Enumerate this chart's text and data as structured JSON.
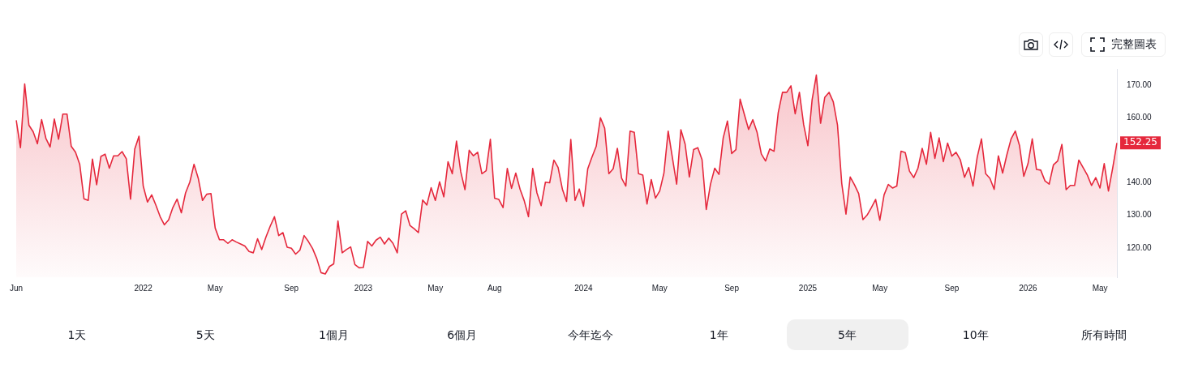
{
  "chart_data": {
    "type": "area",
    "categories": [
      "Jun",
      null,
      null,
      null,
      null,
      null,
      null,
      null,
      null,
      null,
      null,
      null,
      null,
      null,
      null,
      null,
      null,
      null,
      null,
      null,
      null,
      null,
      null,
      null,
      null,
      null,
      null,
      null,
      null,
      null,
      "2022",
      null,
      null,
      null,
      null,
      null,
      null,
      null,
      null,
      null,
      null,
      null,
      null,
      null,
      null,
      null,
      null,
      "May",
      null,
      null,
      null,
      null,
      null,
      null,
      null,
      null,
      null,
      null,
      null,
      null,
      null,
      null,
      null,
      null,
      null,
      "Sep",
      null,
      null,
      null,
      null,
      null,
      null,
      null,
      null,
      null,
      null,
      null,
      null,
      null,
      null,
      null,
      null,
      "2023",
      null,
      null,
      null,
      null,
      null,
      null,
      null,
      null,
      null,
      null,
      null,
      null,
      null,
      null,
      null,
      null,
      "May",
      null,
      null,
      null,
      null,
      null,
      null,
      null,
      null,
      null,
      null,
      null,
      null,
      null,
      "Aug",
      null,
      null,
      null,
      null,
      null,
      null,
      null,
      null,
      null,
      null,
      null,
      null,
      null,
      null,
      null,
      null,
      null,
      null,
      null,
      null,
      "2024",
      null,
      null,
      null,
      null,
      null,
      null,
      null,
      null,
      null,
      null,
      null,
      null,
      null,
      null,
      null,
      null,
      null,
      "May",
      null,
      null,
      null,
      null,
      null,
      null,
      null,
      null,
      null,
      null,
      null,
      null,
      null,
      null,
      null,
      null,
      "Sep",
      null,
      null,
      null,
      null,
      null,
      null,
      null,
      null,
      null,
      null,
      null,
      null,
      null,
      null,
      null,
      null,
      null,
      "2025",
      null,
      null,
      null,
      null,
      null,
      null,
      null,
      null,
      null,
      null,
      null,
      null,
      null,
      null,
      null,
      null,
      "May",
      null,
      null,
      null,
      null,
      null,
      null,
      null,
      null,
      null,
      null,
      null,
      null,
      null,
      null,
      null,
      null,
      "Sep",
      null,
      null,
      null,
      null,
      null,
      null,
      null,
      null,
      null,
      null,
      null,
      null,
      null,
      null,
      null,
      null,
      null,
      "2026",
      null,
      null,
      null,
      null,
      null,
      null,
      null,
      null,
      null,
      null,
      null,
      null,
      null,
      null,
      null,
      null,
      "May",
      null,
      null,
      null,
      null
    ],
    "series": [
      {
        "color": "#e5283c",
        "values": [
          159.2,
          150.8,
          170.4,
          157.7,
          155.7,
          152.0,
          159.4,
          153.7,
          151.0,
          159.6,
          153.4,
          161.1,
          161.1,
          151.2,
          149.4,
          145.7,
          135.1,
          134.6,
          147.3,
          139.4,
          148.1,
          148.8,
          144.5,
          148.3,
          148.3,
          149.6,
          147.4,
          135.0,
          150.4,
          154.3,
          139.0,
          134.1,
          136.3,
          133.1,
          129.6,
          127.1,
          128.6,
          132.4,
          135.0,
          130.8,
          136.9,
          140.2,
          145.7,
          141.4,
          134.6,
          136.5,
          136.7,
          126.1,
          122.5,
          122.5,
          121.4,
          122.5,
          121.8,
          121.2,
          120.6,
          118.9,
          118.5,
          122.8,
          119.5,
          123.4,
          126.7,
          129.6,
          123.8,
          124.7,
          120.2,
          119.9,
          118.1,
          119.3,
          123.8,
          122.0,
          119.8,
          116.7,
          112.4,
          112.0,
          114.3,
          115.1,
          128.3,
          118.5,
          119.5,
          120.3,
          114.9,
          113.9,
          114.0,
          122.0,
          120.6,
          122.4,
          123.3,
          121.2,
          123.0,
          121.4,
          118.5,
          130.4,
          131.4,
          126.9,
          125.9,
          124.7,
          134.7,
          133.2,
          138.5,
          134.6,
          140.3,
          135.7,
          146.5,
          142.8,
          152.8,
          143.4,
          137.9,
          150.0,
          148.3,
          149.4,
          142.8,
          143.7,
          153.4,
          135.3,
          134.9,
          132.4,
          144.4,
          138.3,
          143.0,
          138.1,
          134.5,
          129.6,
          144.4,
          136.9,
          133.0,
          140.2,
          140.0,
          147.0,
          144.7,
          138.1,
          134.3,
          153.3,
          134.6,
          138.1,
          132.8,
          144.3,
          147.9,
          151.2,
          160.0,
          156.8,
          142.8,
          144.3,
          150.6,
          141.4,
          139.0,
          155.9,
          155.5,
          142.8,
          142.4,
          133.5,
          141.0,
          135.3,
          137.5,
          143.0,
          155.9,
          147.7,
          139.6,
          156.3,
          151.9,
          141.8,
          150.2,
          150.8,
          147.1,
          131.8,
          139.6,
          144.5,
          142.6,
          153.8,
          159.0,
          149.0,
          150.2,
          165.7,
          161.0,
          156.4,
          159.4,
          155.5,
          148.9,
          146.7,
          150.4,
          149.7,
          161.6,
          167.8,
          167.8,
          169.8,
          161.2,
          167.8,
          157.9,
          151.4,
          165.5,
          173.1,
          158.3,
          166.3,
          167.8,
          164.9,
          157.7,
          139.8,
          130.4,
          141.8,
          139.4,
          136.7,
          128.7,
          130.1,
          132.4,
          134.9,
          128.5,
          136.3,
          139.5,
          138.4,
          139.0,
          149.7,
          149.3,
          143.6,
          141.6,
          144.5,
          150.6,
          145.7,
          155.5,
          147.5,
          153.8,
          146.5,
          152.2,
          148.2,
          149.4,
          147.1,
          141.7,
          144.7,
          139.0,
          147.9,
          153.5,
          142.8,
          141.4,
          138.0,
          148.3,
          143.0,
          148.6,
          153.5,
          155.9,
          151.4,
          142.0,
          145.9,
          153.5,
          144.1,
          143.9,
          140.6,
          139.6,
          145.5,
          146.7,
          151.8,
          137.9,
          139.2,
          139.2,
          147.0,
          144.7,
          142.4,
          139.2,
          141.6,
          138.4,
          145.9,
          137.5,
          144.5,
          152.25
        ],
        "value_labels": [
          null,
          null,
          null,
          null,
          null,
          null,
          null,
          null,
          null,
          null,
          null,
          null,
          null,
          null,
          null,
          null,
          null,
          null,
          null,
          null,
          null,
          null,
          null,
          null,
          null,
          null,
          null,
          null,
          null,
          null,
          null,
          null,
          null,
          null,
          null,
          null,
          null,
          null,
          null,
          null,
          null,
          null,
          null,
          null,
          null,
          null,
          null,
          null,
          null,
          null,
          null,
          null,
          null,
          null,
          null,
          null,
          null,
          null,
          null,
          null,
          null,
          null,
          null,
          null,
          null,
          null,
          null,
          null,
          null,
          null,
          null,
          null,
          null,
          null,
          null,
          null,
          null,
          null,
          null,
          null,
          null,
          null,
          null,
          null,
          null,
          null,
          null,
          null,
          null,
          null,
          null,
          null,
          null,
          null,
          null,
          null,
          null,
          null,
          null,
          null,
          null,
          null,
          null,
          null,
          null,
          null,
          null,
          null,
          null,
          null,
          null,
          null,
          null,
          null,
          null,
          null,
          null,
          null,
          null,
          null,
          null,
          null,
          null,
          null,
          null,
          null,
          null,
          null,
          null,
          null,
          null,
          null,
          null,
          null,
          null,
          null,
          null,
          null,
          null,
          null,
          null,
          null,
          null,
          null,
          null,
          null,
          null,
          null,
          null,
          null,
          null,
          null,
          null,
          null,
          null,
          null,
          null,
          null,
          null,
          null,
          null,
          null,
          null,
          null,
          null,
          null,
          null,
          null,
          null,
          null,
          null,
          null,
          null,
          null,
          null,
          null,
          null,
          null,
          null,
          null,
          null,
          null,
          null,
          null,
          null,
          null,
          null,
          null,
          null,
          null,
          null,
          null,
          null,
          null,
          null,
          null,
          null,
          null,
          null,
          null,
          null,
          null,
          null,
          null,
          null,
          null,
          null,
          null,
          null,
          null,
          null,
          null,
          null,
          null,
          null,
          null,
          null,
          null,
          null,
          null,
          null,
          null,
          null,
          null,
          null,
          null,
          null,
          null,
          null,
          null,
          null,
          null,
          null,
          null,
          null,
          null,
          null,
          null,
          null,
          null,
          null,
          null,
          null,
          null,
          null,
          null,
          null,
          null,
          null,
          null,
          null,
          null,
          null,
          null,
          null,
          null,
          null,
          null,
          null,
          null,
          "152.25"
        ]
      }
    ],
    "ylim": [
      111,
      175
    ],
    "yticks": [
      {
        "value": 120,
        "label": "120.00"
      },
      {
        "value": 130,
        "label": "130.00"
      },
      {
        "value": 140,
        "label": "140.00"
      },
      {
        "value": 160,
        "label": "160.00"
      },
      {
        "value": 170,
        "label": "170.00"
      }
    ],
    "grid": false,
    "legend": false,
    "annotations": [
      "完整圖表",
      "1天",
      "5天",
      "1個月",
      "6個月",
      "今年迄今",
      "1年",
      "5年",
      "10年",
      "所有時間"
    ]
  }
}
